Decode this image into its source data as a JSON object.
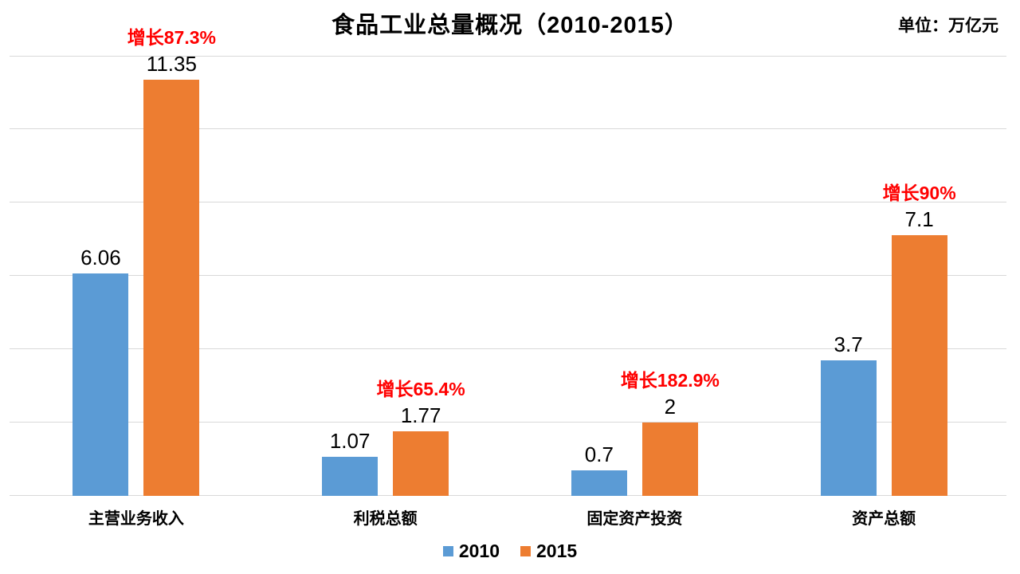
{
  "header": {
    "title": "食品工业总量概况（2010-2015）",
    "unit_label": "单位：万亿元"
  },
  "chart_data": {
    "type": "bar",
    "title": "食品工业总量概况（2010-2015）",
    "unit": "万亿元",
    "categories": [
      "主营业务收入",
      "利税总额",
      "固定资产投资",
      "资产总额"
    ],
    "series": [
      {
        "name": "2010",
        "color": "#5B9BD5",
        "values": [
          6.06,
          1.07,
          0.7,
          3.7
        ]
      },
      {
        "name": "2015",
        "color": "#ED7D31",
        "values": [
          11.35,
          1.77,
          2,
          7.1
        ]
      }
    ],
    "value_labels": {
      "2010": [
        "6.06",
        "1.07",
        "0.7",
        "3.7"
      ],
      "2015": [
        "11.35",
        "1.77",
        "2",
        "7.1"
      ]
    },
    "growth_annotations": {
      "labels": [
        "增长87.3%",
        "增长65.4%",
        "增长182.9%",
        "增长90%"
      ],
      "attached_to_series": "2015",
      "color": "#FF0000"
    },
    "ylim": [
      0,
      12
    ],
    "grid_step": 2,
    "grid": true,
    "gridline_color": "#D9D9D9",
    "legend_position": "bottom",
    "legend": [
      "2010",
      "2015"
    ]
  }
}
